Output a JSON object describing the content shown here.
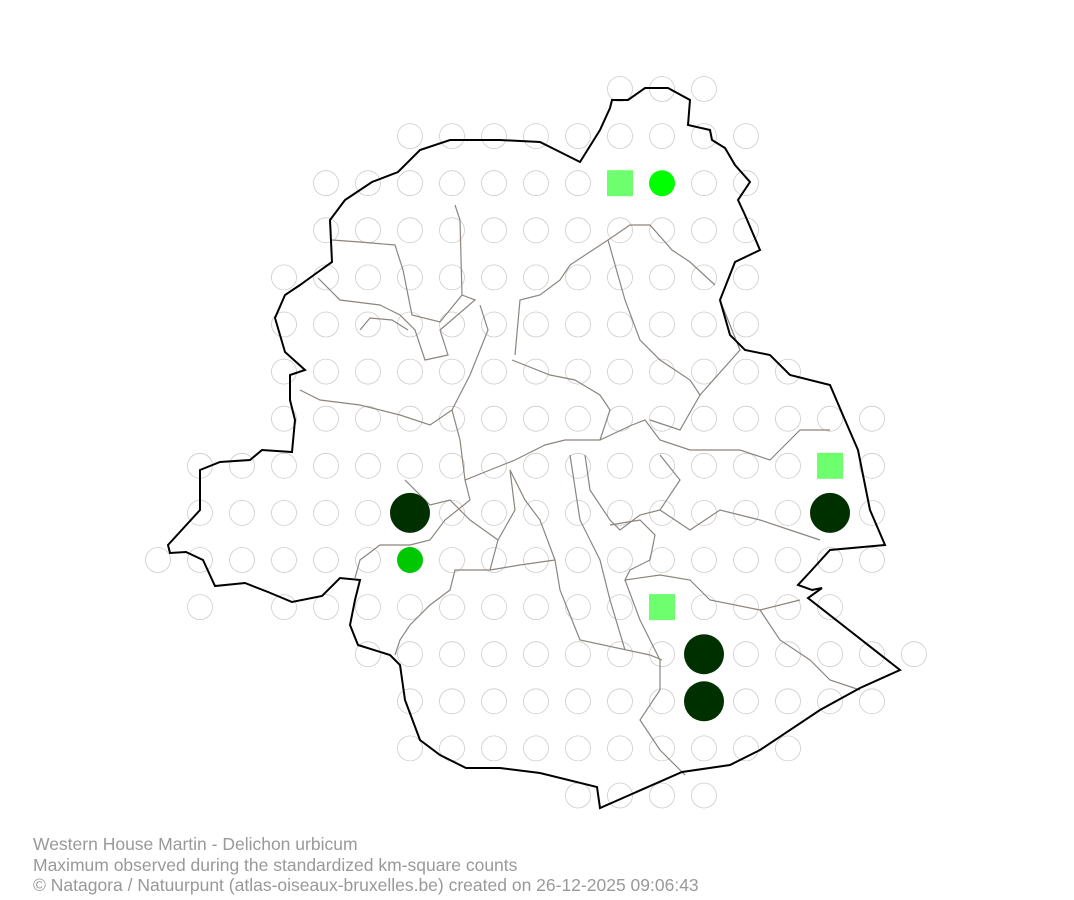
{
  "map": {
    "colors": {
      "empty_square": "#cccccc",
      "outer_boundary": "#000000",
      "commune_boundary": "#8c857e",
      "category_low_square": "#6eff6e",
      "category_small": "#00ff00",
      "category_medium": "#00c800",
      "category_high": "#003000"
    },
    "markers": [
      {
        "col": 11,
        "row": 2,
        "kind": "square",
        "color": "#6eff6e"
      },
      {
        "col": 12,
        "row": 2,
        "kind": "circle-small",
        "color": "#00ff00"
      },
      {
        "col": 16,
        "row": 8,
        "kind": "square",
        "color": "#6eff6e"
      },
      {
        "col": 6,
        "row": 9,
        "kind": "circle-large",
        "color": "#003000"
      },
      {
        "col": 16,
        "row": 9,
        "kind": "circle-large",
        "color": "#003000"
      },
      {
        "col": 6,
        "row": 10,
        "kind": "circle-small",
        "color": "#00c800"
      },
      {
        "col": 12,
        "row": 11,
        "kind": "square",
        "color": "#6eff6e"
      },
      {
        "col": 13,
        "row": 12,
        "kind": "circle-large",
        "color": "#003000"
      },
      {
        "col": 13,
        "row": 13,
        "kind": "circle-large",
        "color": "#003000"
      }
    ]
  },
  "footer": {
    "species": "Western House Martin - Delichon urbicum",
    "description": "Maximum observed during the standardized km-square counts",
    "credit": "© Natagora / Natuurpunt (atlas-oiseaux-bruxelles.be) created on 26-12-2025 09:06:43"
  }
}
